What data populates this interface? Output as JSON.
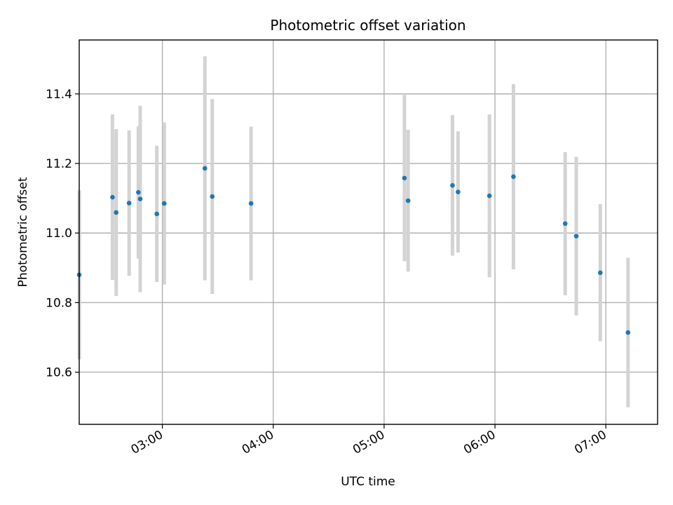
{
  "chart_data": {
    "type": "scatter",
    "title": "Photometric offset variation",
    "xlabel": "UTC time",
    "ylabel": "Photometric offset",
    "x_format": "time",
    "xlim": [
      "02:15",
      "07:28"
    ],
    "ylim": [
      10.45,
      11.555
    ],
    "x_ticks": [
      "03:00",
      "04:00",
      "05:00",
      "06:00",
      "07:00"
    ],
    "y_ticks": [
      10.6,
      10.8,
      11.0,
      11.2,
      11.4
    ],
    "grid": true,
    "colors": {
      "marker": "#1f77b4",
      "errorbar": "#d3d3d3"
    },
    "points": [
      {
        "x": "02:15",
        "y": 10.88,
        "err": 0.243
      },
      {
        "x": "02:33",
        "y": 11.103,
        "err": 0.238
      },
      {
        "x": "02:35",
        "y": 11.059,
        "err": 0.24
      },
      {
        "x": "02:42",
        "y": 11.086,
        "err": 0.209
      },
      {
        "x": "02:47",
        "y": 11.117,
        "err": 0.19
      },
      {
        "x": "02:48",
        "y": 11.098,
        "err": 0.268
      },
      {
        "x": "02:57",
        "y": 11.055,
        "err": 0.196
      },
      {
        "x": "03:01",
        "y": 11.085,
        "err": 0.233
      },
      {
        "x": "03:23",
        "y": 11.186,
        "err": 0.322
      },
      {
        "x": "03:27",
        "y": 11.105,
        "err": 0.28
      },
      {
        "x": "03:48",
        "y": 11.085,
        "err": 0.221
      },
      {
        "x": "05:11",
        "y": 11.158,
        "err": 0.239
      },
      {
        "x": "05:13",
        "y": 11.093,
        "err": 0.204
      },
      {
        "x": "05:37",
        "y": 11.137,
        "err": 0.202
      },
      {
        "x": "05:40",
        "y": 11.118,
        "err": 0.174
      },
      {
        "x": "05:57",
        "y": 11.107,
        "err": 0.234
      },
      {
        "x": "06:10",
        "y": 11.162,
        "err": 0.266
      },
      {
        "x": "06:38",
        "y": 11.027,
        "err": 0.206
      },
      {
        "x": "06:44",
        "y": 10.991,
        "err": 0.228
      },
      {
        "x": "06:57",
        "y": 10.886,
        "err": 0.197
      },
      {
        "x": "07:12",
        "y": 10.714,
        "err": 0.215
      }
    ]
  }
}
